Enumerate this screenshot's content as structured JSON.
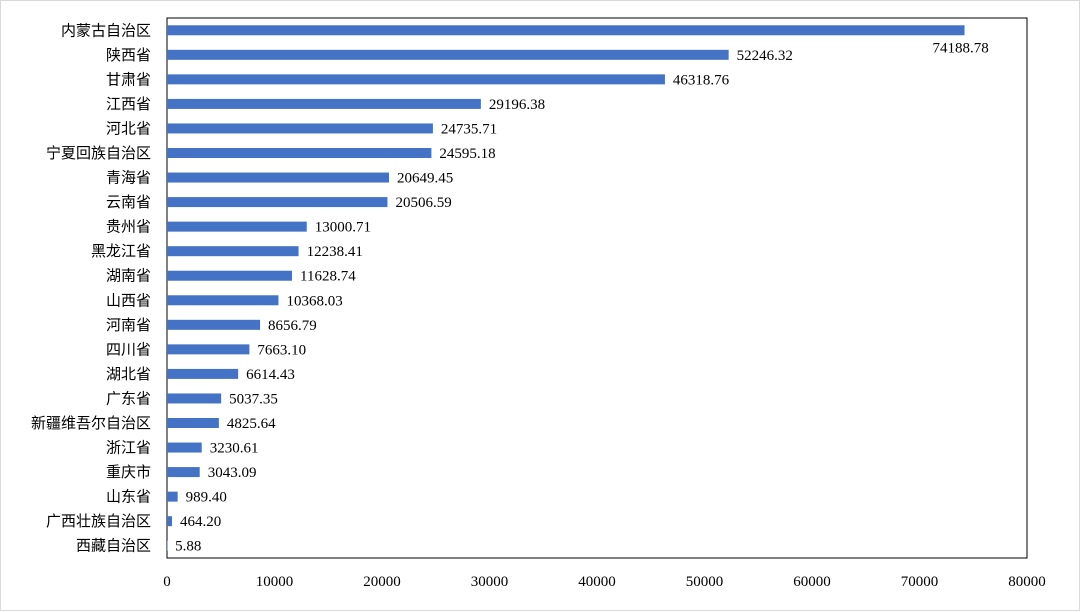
{
  "chart_data": {
    "type": "bar",
    "orientation": "horizontal",
    "title": "",
    "xlabel": "",
    "ylabel": "",
    "xlim": [
      0,
      80000
    ],
    "xticks": [
      0,
      10000,
      20000,
      30000,
      40000,
      50000,
      60000,
      70000,
      80000
    ],
    "grid": false,
    "bar_color": "#4472c4",
    "categories": [
      "内蒙古自治区",
      "陕西省",
      "甘肃省",
      "江西省",
      "河北省",
      "宁夏回族自治区",
      "青海省",
      "云南省",
      "贵州省",
      "黑龙江省",
      "湖南省",
      "山西省",
      "河南省",
      "四川省",
      "湖北省",
      "广东省",
      "新疆维吾尔自治区",
      "浙江省",
      "重庆市",
      "山东省",
      "广西壮族自治区",
      "西藏自治区"
    ],
    "values": [
      74188.78,
      52246.32,
      46318.76,
      29196.38,
      24735.71,
      24595.18,
      20649.45,
      20506.59,
      13000.71,
      12238.41,
      11628.74,
      10368.03,
      8656.79,
      7663.1,
      6614.43,
      5037.35,
      4825.64,
      3230.61,
      3043.09,
      989.4,
      464.2,
      5.88
    ],
    "value_labels": [
      "74188.78",
      "52246.32",
      "46318.76",
      "29196.38",
      "24735.71",
      "24595.18",
      "20649.45",
      "20506.59",
      "13000.71",
      "12238.41",
      "11628.74",
      "10368.03",
      "8656.79",
      "7663.10",
      "6614.43",
      "5037.35",
      "4825.64",
      "3230.61",
      "3043.09",
      "989.40",
      "464.20",
      "5.88"
    ]
  }
}
